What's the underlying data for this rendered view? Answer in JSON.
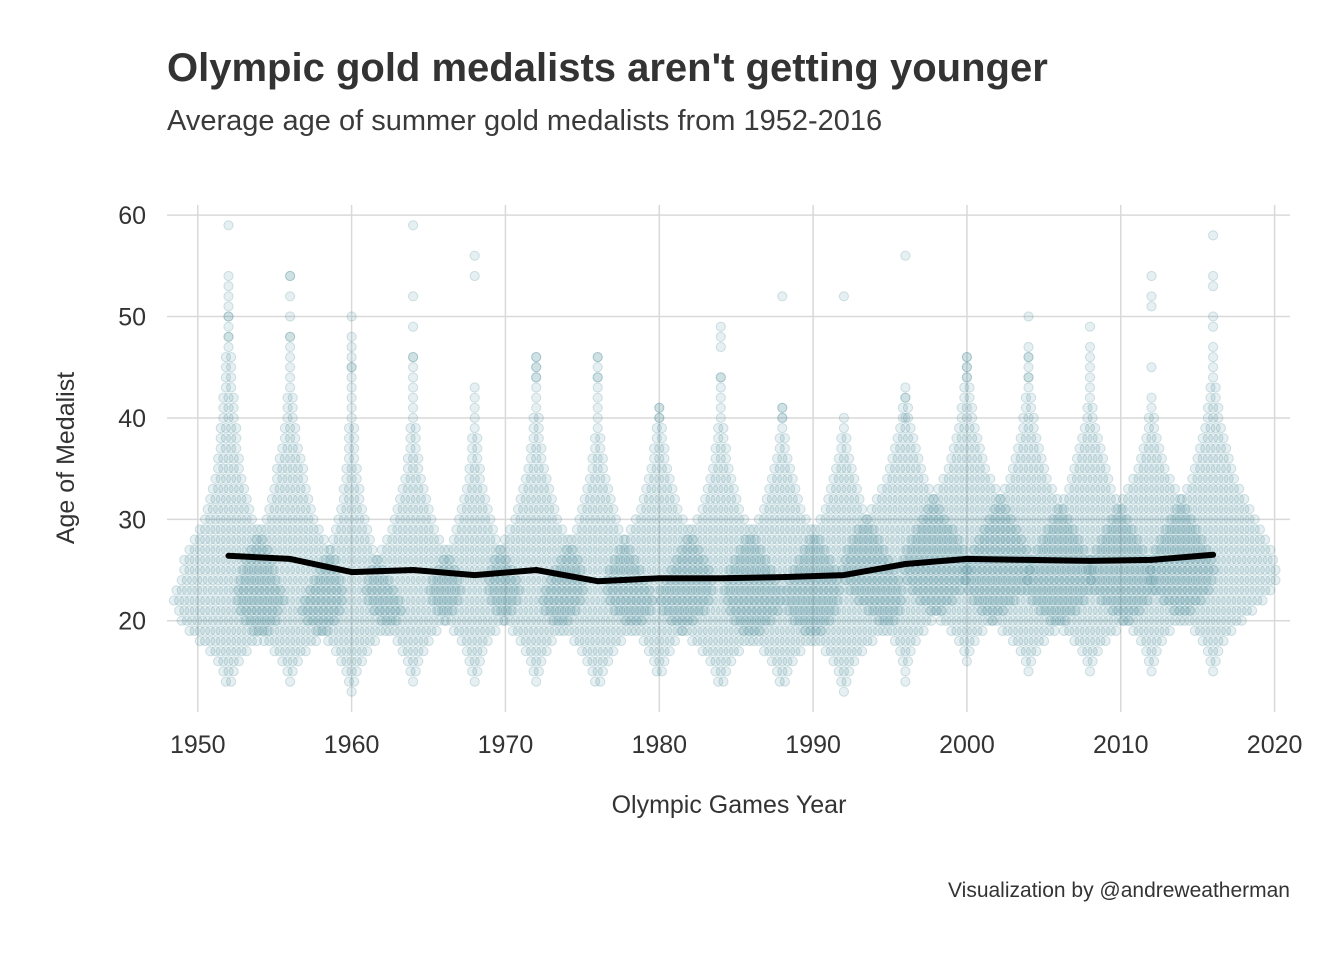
{
  "title": "Olympic gold medalists aren't getting younger",
  "subtitle": "Average age of summer gold medalists from 1952-2016",
  "caption": "Visualization by @andreweatherman",
  "chart_data": {
    "type": "scatter",
    "subtype": "beeswarm with mean line",
    "xlabel": "Olympic Games Year",
    "ylabel": "Age of Medalist",
    "xlim": [
      1948,
      2021
    ],
    "ylim": [
      11,
      61
    ],
    "x_ticks": [
      1950,
      1960,
      1970,
      1980,
      1990,
      2000,
      2010,
      2020
    ],
    "y_ticks": [
      20,
      30,
      40,
      50,
      60
    ],
    "grid": true,
    "colors": {
      "points": "#3b8590",
      "line": "#000000",
      "grid": "#d9d9d9"
    },
    "games": [
      {
        "year": 1952,
        "mean_age": 26.4,
        "min_age": 14,
        "max_age": 59,
        "peak_age": 22,
        "outliers": [
          59,
          50,
          48
        ],
        "counts": [
          2,
          3,
          5,
          8,
          12,
          16,
          19,
          20,
          22,
          21,
          19,
          18,
          18,
          16,
          14,
          12,
          10,
          9,
          8,
          7,
          6,
          5,
          5,
          4,
          4,
          4,
          3,
          3,
          3,
          2,
          2,
          2,
          2,
          1,
          1,
          1,
          1,
          1,
          1,
          1,
          1
        ]
      },
      {
        "year": 1956,
        "mean_age": 26.1,
        "min_age": 14,
        "max_age": 54,
        "peak_age": 22,
        "outliers": [
          54,
          54,
          52,
          50,
          48
        ],
        "counts": [
          1,
          2,
          4,
          7,
          11,
          15,
          18,
          20,
          21,
          21,
          20,
          19,
          18,
          16,
          14,
          12,
          10,
          9,
          8,
          7,
          6,
          6,
          5,
          4,
          3,
          3,
          2,
          2,
          2,
          1,
          1,
          1,
          1,
          1,
          1
        ]
      },
      {
        "year": 1960,
        "mean_age": 24.8,
        "min_age": 13,
        "max_age": 50,
        "peak_age": 21,
        "outliers": [
          50,
          48,
          45
        ],
        "counts": [
          1,
          2,
          3,
          5,
          7,
          10,
          14,
          18,
          20,
          19,
          17,
          15,
          13,
          11,
          9,
          8,
          7,
          6,
          5,
          4,
          4,
          3,
          3,
          2,
          2,
          2,
          2,
          1,
          1,
          1,
          1,
          1,
          1,
          1,
          1
        ]
      },
      {
        "year": 1964,
        "mean_age": 25.0,
        "min_age": 14,
        "max_age": 59,
        "peak_age": 22,
        "outliers": [
          59,
          52,
          49,
          46,
          46
        ],
        "counts": [
          1,
          2,
          3,
          5,
          7,
          10,
          13,
          16,
          18,
          19,
          18,
          17,
          15,
          13,
          11,
          9,
          8,
          7,
          6,
          5,
          4,
          3,
          3,
          2,
          2,
          2,
          1,
          1,
          1,
          1,
          1,
          1
        ]
      },
      {
        "year": 1968,
        "mean_age": 24.5,
        "min_age": 14,
        "max_age": 56,
        "peak_age": 22,
        "outliers": [
          56,
          54,
          43
        ],
        "counts": [
          1,
          2,
          3,
          4,
          6,
          9,
          12,
          15,
          17,
          18,
          17,
          15,
          13,
          11,
          9,
          8,
          7,
          6,
          5,
          4,
          3,
          3,
          2,
          2,
          2,
          1,
          1,
          1,
          1
        ]
      },
      {
        "year": 1972,
        "mean_age": 25.0,
        "min_age": 14,
        "max_age": 46,
        "peak_age": 23,
        "outliers": [
          46,
          45,
          44
        ],
        "counts": [
          1,
          2,
          3,
          5,
          7,
          10,
          13,
          16,
          18,
          19,
          19,
          18,
          17,
          15,
          13,
          11,
          9,
          8,
          7,
          6,
          5,
          4,
          3,
          3,
          2,
          2,
          2,
          1,
          1,
          1,
          1,
          1,
          1
        ]
      },
      {
        "year": 1976,
        "mean_age": 23.9,
        "min_age": 14,
        "max_age": 46,
        "peak_age": 21,
        "outliers": [
          46,
          44
        ],
        "counts": [
          2,
          3,
          5,
          7,
          10,
          14,
          18,
          21,
          22,
          21,
          19,
          17,
          15,
          13,
          11,
          9,
          8,
          7,
          6,
          5,
          4,
          3,
          3,
          2,
          2,
          1,
          1,
          1,
          1,
          1,
          1,
          1,
          1
        ]
      },
      {
        "year": 1980,
        "mean_age": 24.2,
        "min_age": 15,
        "max_age": 41,
        "peak_age": 22,
        "outliers": [
          41,
          40
        ],
        "counts": [
          2,
          3,
          5,
          7,
          10,
          14,
          18,
          20,
          21,
          21,
          20,
          18,
          16,
          14,
          12,
          10,
          8,
          7,
          6,
          5,
          4,
          3,
          3,
          2,
          2,
          1,
          1
        ]
      },
      {
        "year": 1984,
        "mean_age": 24.2,
        "min_age": 14,
        "max_age": 49,
        "peak_age": 22,
        "outliers": [
          49,
          48,
          47,
          44
        ],
        "counts": [
          2,
          3,
          5,
          8,
          12,
          16,
          20,
          23,
          24,
          24,
          22,
          20,
          18,
          16,
          14,
          12,
          10,
          8,
          7,
          6,
          5,
          4,
          3,
          3,
          2,
          2,
          1,
          1,
          1,
          1,
          1
        ]
      },
      {
        "year": 1988,
        "mean_age": 24.3,
        "min_age": 14,
        "max_age": 52,
        "peak_age": 23,
        "outliers": [
          52,
          41,
          40
        ],
        "counts": [
          2,
          3,
          5,
          8,
          12,
          16,
          19,
          21,
          22,
          23,
          22,
          21,
          19,
          17,
          15,
          12,
          10,
          8,
          7,
          6,
          5,
          4,
          3,
          2,
          2,
          1,
          1,
          1
        ]
      },
      {
        "year": 1992,
        "mean_age": 24.5,
        "min_age": 13,
        "max_age": 52,
        "peak_age": 23,
        "outliers": [
          52
        ],
        "counts": [
          1,
          2,
          3,
          5,
          8,
          12,
          16,
          20,
          22,
          23,
          23,
          22,
          20,
          18,
          16,
          14,
          12,
          10,
          8,
          7,
          6,
          5,
          4,
          3,
          2,
          2,
          1,
          1
        ]
      },
      {
        "year": 1996,
        "mean_age": 25.6,
        "min_age": 14,
        "max_age": 56,
        "peak_age": 25,
        "outliers": [
          56,
          42,
          40
        ],
        "counts": [
          1,
          1,
          2,
          3,
          5,
          8,
          11,
          15,
          19,
          22,
          24,
          25,
          24,
          23,
          21,
          19,
          16,
          14,
          12,
          10,
          8,
          7,
          6,
          5,
          4,
          3,
          2,
          2,
          1,
          1
        ]
      },
      {
        "year": 2000,
        "mean_age": 26.1,
        "min_age": 16,
        "max_age": 46,
        "peak_age": 25,
        "outliers": [
          46,
          45,
          44
        ],
        "counts": [
          1,
          2,
          4,
          7,
          11,
          15,
          19,
          22,
          24,
          25,
          25,
          24,
          22,
          20,
          18,
          16,
          14,
          12,
          10,
          8,
          7,
          6,
          5,
          4,
          3,
          3,
          2,
          2,
          1,
          1,
          1
        ]
      },
      {
        "year": 2004,
        "mean_age": 26.0,
        "min_age": 15,
        "max_age": 50,
        "peak_age": 25,
        "outliers": [
          50,
          47,
          46,
          44
        ],
        "counts": [
          1,
          2,
          4,
          7,
          11,
          15,
          19,
          22,
          24,
          25,
          25,
          24,
          22,
          20,
          18,
          16,
          14,
          12,
          10,
          8,
          7,
          6,
          5,
          4,
          3,
          3,
          2,
          2,
          1,
          1,
          1,
          1
        ]
      },
      {
        "year": 2008,
        "mean_age": 25.9,
        "min_age": 15,
        "max_age": 49,
        "peak_age": 24,
        "outliers": [
          49,
          47,
          46
        ],
        "counts": [
          1,
          2,
          4,
          7,
          11,
          16,
          20,
          23,
          25,
          25,
          24,
          23,
          21,
          19,
          17,
          15,
          13,
          11,
          9,
          8,
          7,
          6,
          5,
          4,
          3,
          2,
          2,
          1,
          1,
          1,
          1
        ]
      },
      {
        "year": 2012,
        "mean_age": 26.0,
        "min_age": 15,
        "max_age": 54,
        "peak_age": 25,
        "outliers": [
          54,
          52,
          51,
          45
        ],
        "counts": [
          1,
          2,
          3,
          5,
          8,
          12,
          16,
          20,
          23,
          24,
          25,
          24,
          22,
          20,
          18,
          16,
          14,
          12,
          10,
          8,
          6,
          5,
          4,
          3,
          2,
          2,
          1,
          1
        ]
      },
      {
        "year": 2016,
        "mean_age": 26.5,
        "min_age": 15,
        "max_age": 58,
        "peak_age": 25,
        "outliers": [
          58,
          54,
          53,
          50,
          49,
          47
        ],
        "counts": [
          1,
          2,
          3,
          5,
          8,
          12,
          16,
          20,
          23,
          25,
          25,
          24,
          23,
          21,
          19,
          17,
          15,
          13,
          11,
          9,
          8,
          7,
          6,
          5,
          4,
          3,
          3,
          2,
          2,
          1,
          1,
          1
        ]
      }
    ]
  }
}
